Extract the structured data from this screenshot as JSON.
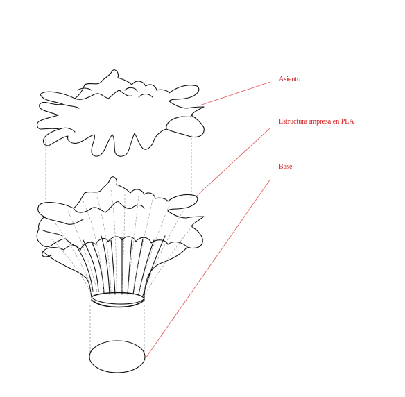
{
  "labels": {
    "seat": "Asiento",
    "structure": "Estructura impresa en PLA",
    "base": "Base"
  },
  "colors": {
    "label_text": "#d11a1a",
    "leader_line": "#e05050",
    "outline": "#111111",
    "guide": "#888888",
    "background": "#ffffff"
  }
}
